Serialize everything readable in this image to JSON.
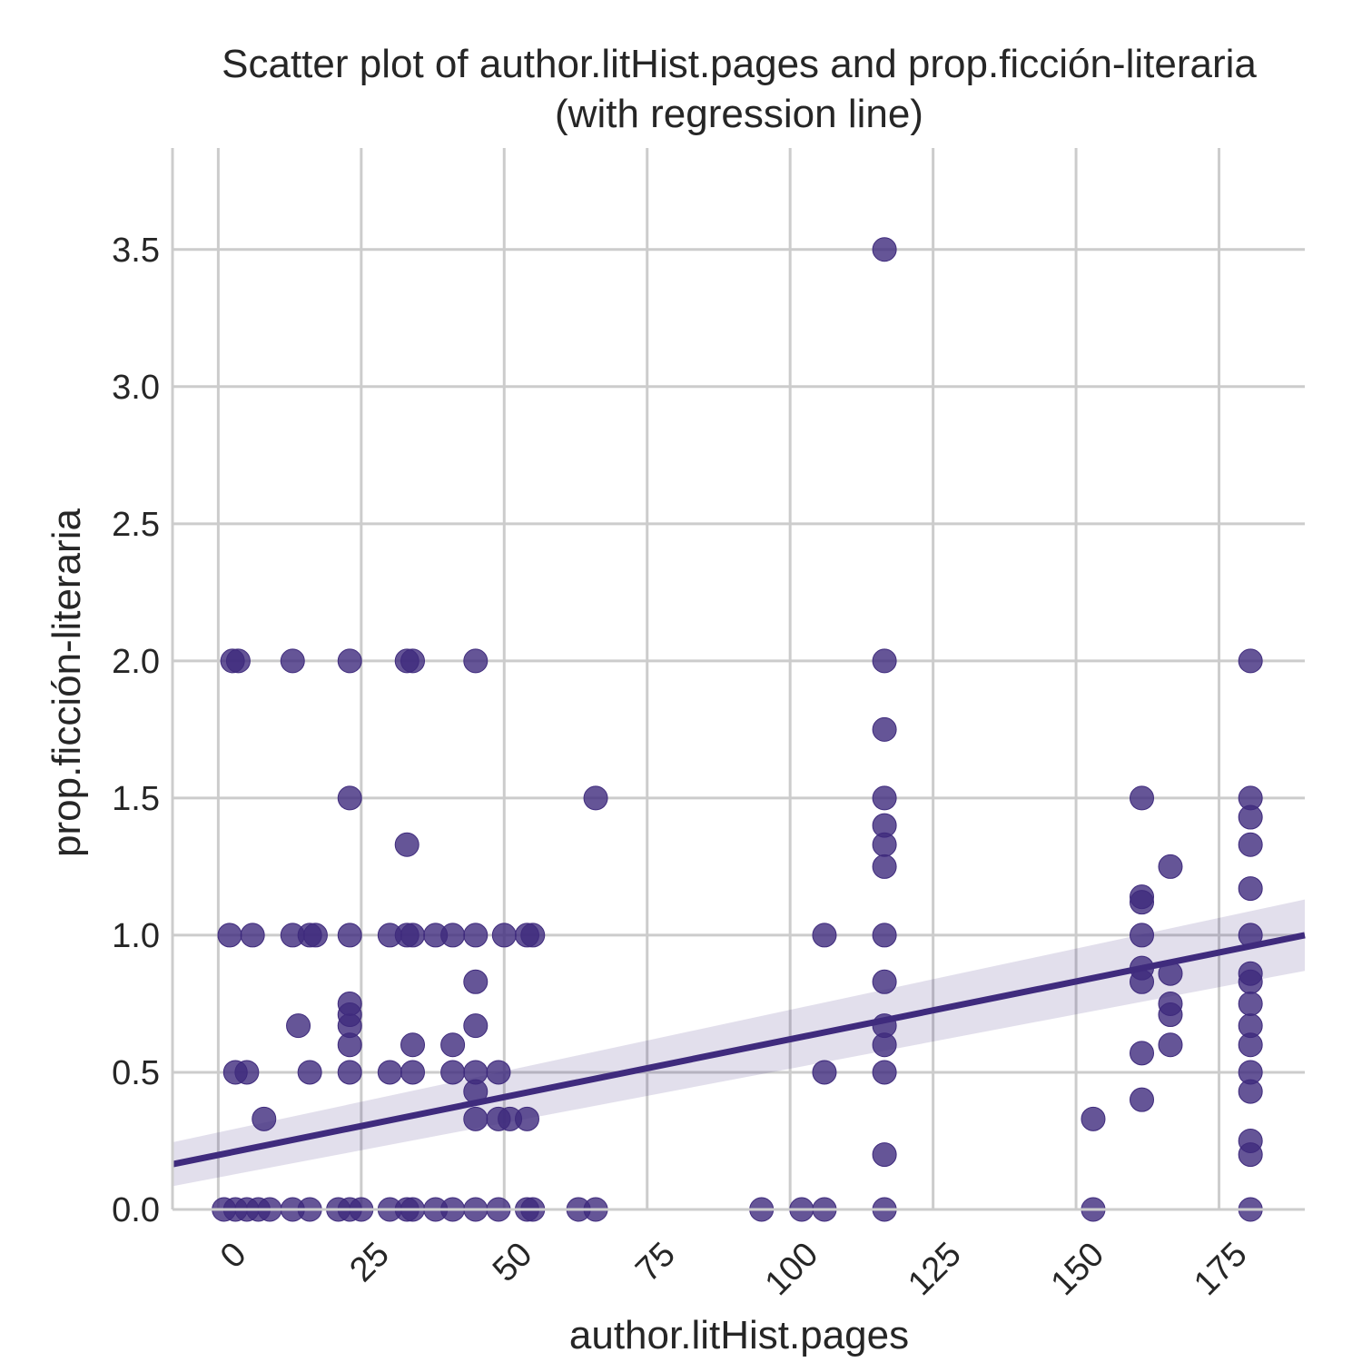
{
  "chart_data": {
    "type": "scatter",
    "title_line1": "Scatter plot of author.litHist.pages and prop.ficción-literaria",
    "title_line2": "(with regression line)",
    "xlabel": "author.litHist.pages",
    "ylabel": "prop.ficción-literaria",
    "xlim": [
      -8,
      190
    ],
    "ylim": [
      0,
      3.87
    ],
    "x_ticks": [
      0,
      25,
      50,
      75,
      100,
      125,
      150,
      175
    ],
    "y_ticks": [
      0.0,
      0.5,
      1.0,
      1.5,
      2.0,
      2.5,
      3.0,
      3.5
    ],
    "x_tick_labels": [
      "0",
      "25",
      "50",
      "75",
      "100",
      "125",
      "150",
      "175"
    ],
    "y_tick_labels": [
      "0.0",
      "0.5",
      "1.0",
      "1.5",
      "2.0",
      "2.5",
      "3.0",
      "3.5"
    ],
    "grid": true,
    "point_color": "#3f2b7d",
    "regression": {
      "x": [
        -8,
        190
      ],
      "y": [
        0.165,
        1.0
      ],
      "ci_lower": [
        0.085,
        0.87
      ],
      "ci_upper": [
        0.245,
        1.13
      ]
    },
    "points": [
      [
        116.5,
        3.5
      ],
      [
        2.5,
        2.0
      ],
      [
        3.5,
        2.0
      ],
      [
        13,
        2.0
      ],
      [
        23,
        2.0
      ],
      [
        33,
        2.0
      ],
      [
        34,
        2.0
      ],
      [
        45,
        2.0
      ],
      [
        116.5,
        2.0
      ],
      [
        180.5,
        2.0
      ],
      [
        116.5,
        1.75
      ],
      [
        23,
        1.5
      ],
      [
        66,
        1.5
      ],
      [
        116.5,
        1.5
      ],
      [
        161.5,
        1.5
      ],
      [
        180.5,
        1.5
      ],
      [
        116.5,
        1.4
      ],
      [
        180.5,
        1.43
      ],
      [
        33,
        1.33
      ],
      [
        116.5,
        1.33
      ],
      [
        180.5,
        1.33
      ],
      [
        116.5,
        1.25
      ],
      [
        166.5,
        1.25
      ],
      [
        180.5,
        1.17
      ],
      [
        161.5,
        1.14
      ],
      [
        161.5,
        1.12
      ],
      [
        2,
        1.0
      ],
      [
        6,
        1.0
      ],
      [
        13,
        1.0
      ],
      [
        16,
        1.0
      ],
      [
        17,
        1.0
      ],
      [
        23,
        1.0
      ],
      [
        30,
        1.0
      ],
      [
        33,
        1.0
      ],
      [
        34,
        1.0
      ],
      [
        38,
        1.0
      ],
      [
        41,
        1.0
      ],
      [
        45,
        1.0
      ],
      [
        50,
        1.0
      ],
      [
        54,
        1.0
      ],
      [
        55,
        1.0
      ],
      [
        106,
        1.0
      ],
      [
        116.5,
        1.0
      ],
      [
        161.5,
        1.0
      ],
      [
        180.5,
        1.0
      ],
      [
        161.5,
        0.88
      ],
      [
        166.5,
        0.86
      ],
      [
        180.5,
        0.86
      ],
      [
        45,
        0.83
      ],
      [
        116.5,
        0.83
      ],
      [
        161.5,
        0.83
      ],
      [
        180.5,
        0.83
      ],
      [
        23,
        0.75
      ],
      [
        166.5,
        0.75
      ],
      [
        180.5,
        0.75
      ],
      [
        23,
        0.71
      ],
      [
        166.5,
        0.71
      ],
      [
        14,
        0.67
      ],
      [
        23,
        0.67
      ],
      [
        45,
        0.67
      ],
      [
        116.5,
        0.67
      ],
      [
        180.5,
        0.67
      ],
      [
        23,
        0.6
      ],
      [
        34,
        0.6
      ],
      [
        41,
        0.6
      ],
      [
        116.5,
        0.6
      ],
      [
        166.5,
        0.6
      ],
      [
        180.5,
        0.6
      ],
      [
        161.5,
        0.57
      ],
      [
        3,
        0.5
      ],
      [
        5,
        0.5
      ],
      [
        16,
        0.5
      ],
      [
        23,
        0.5
      ],
      [
        30,
        0.5
      ],
      [
        34,
        0.5
      ],
      [
        41,
        0.5
      ],
      [
        45,
        0.5
      ],
      [
        49,
        0.5
      ],
      [
        106,
        0.5
      ],
      [
        116.5,
        0.5
      ],
      [
        180.5,
        0.5
      ],
      [
        45,
        0.43
      ],
      [
        180.5,
        0.43
      ],
      [
        161.5,
        0.4
      ],
      [
        8,
        0.33
      ],
      [
        45,
        0.33
      ],
      [
        49,
        0.33
      ],
      [
        51,
        0.33
      ],
      [
        54,
        0.33
      ],
      [
        153,
        0.33
      ],
      [
        180.5,
        0.25
      ],
      [
        116.5,
        0.2
      ],
      [
        180.5,
        0.2
      ],
      [
        1,
        0.0
      ],
      [
        3,
        0.0
      ],
      [
        5,
        0.0
      ],
      [
        7,
        0.0
      ],
      [
        9,
        0.0
      ],
      [
        13,
        0.0
      ],
      [
        16,
        0.0
      ],
      [
        21,
        0.0
      ],
      [
        23,
        0.0
      ],
      [
        25,
        0.0
      ],
      [
        30,
        0.0
      ],
      [
        33,
        0.0
      ],
      [
        34,
        0.0
      ],
      [
        38,
        0.0
      ],
      [
        41,
        0.0
      ],
      [
        45,
        0.0
      ],
      [
        49,
        0.0
      ],
      [
        54,
        0.0
      ],
      [
        55,
        0.0
      ],
      [
        63,
        0.0
      ],
      [
        66,
        0.0
      ],
      [
        95,
        0.0
      ],
      [
        102,
        0.0
      ],
      [
        106,
        0.0
      ],
      [
        116.5,
        0.0
      ],
      [
        153,
        0.0
      ],
      [
        180.5,
        0.0
      ]
    ]
  }
}
